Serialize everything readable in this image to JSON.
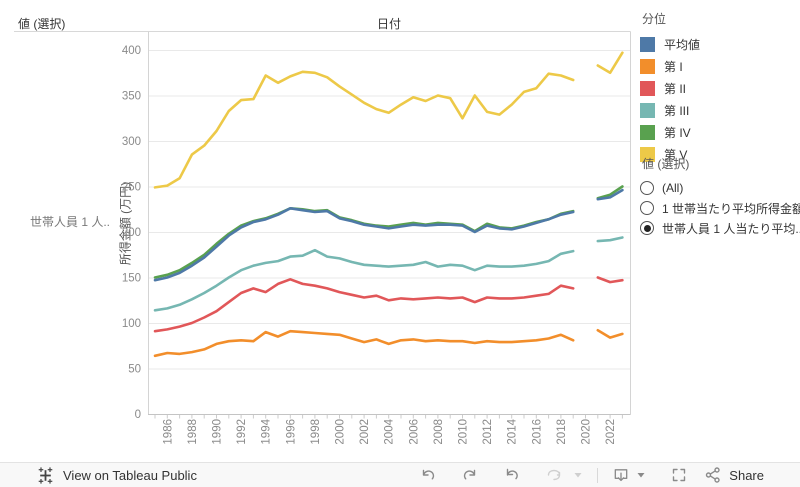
{
  "sheet": {
    "corner_header": "値 (選択)",
    "col_header": "日付",
    "row_label": "世帯人員 1 人.."
  },
  "legend": {
    "title": "分位",
    "items": [
      {
        "label": "平均値",
        "color": "#4e79a7"
      },
      {
        "label": "第 I",
        "color": "#f28e2b"
      },
      {
        "label": "第 II",
        "color": "#e15759"
      },
      {
        "label": "第 III",
        "color": "#76b7b2"
      },
      {
        "label": "第 IV",
        "color": "#59a14f"
      },
      {
        "label": "第 V",
        "color": "#edc948"
      }
    ]
  },
  "filter": {
    "title": "値 (選択)",
    "options": [
      {
        "label": "(All)",
        "selected": false
      },
      {
        "label": "1 世帯当たり平均所得金額",
        "selected": false
      },
      {
        "label": "世帯人員 1 人当たり平均...",
        "selected": true
      }
    ]
  },
  "toolbar": {
    "view_label": "View on Tableau Public",
    "share_label": "Share"
  },
  "chart_data": {
    "type": "line",
    "title": "日付",
    "xlabel": "日付",
    "ylabel": "所得金額 (万円)",
    "ylim": [
      0,
      400
    ],
    "y_ticks": [
      0,
      50,
      100,
      150,
      200,
      250,
      300,
      350,
      400
    ],
    "x_tick_years": [
      1986,
      1988,
      1990,
      1992,
      1994,
      1996,
      1998,
      2000,
      2002,
      2004,
      2006,
      2008,
      2010,
      2012,
      2014,
      2016,
      2018,
      2020,
      2022
    ],
    "grid": true,
    "legend_position": "right",
    "x": [
      1985,
      1986,
      1987,
      1988,
      1989,
      1990,
      1991,
      1992,
      1993,
      1994,
      1995,
      1996,
      1997,
      1998,
      1999,
      2000,
      2001,
      2002,
      2003,
      2004,
      2005,
      2006,
      2007,
      2008,
      2009,
      2010,
      2011,
      2012,
      2013,
      2014,
      2015,
      2016,
      2017,
      2018,
      2019,
      2021,
      2022,
      2023
    ],
    "series": [
      {
        "name": "第 V",
        "color": "#edc948",
        "values": [
          249,
          251,
          259,
          285,
          295,
          311,
          333,
          345,
          346,
          372,
          364,
          371,
          376,
          375,
          370,
          360,
          351,
          342,
          335,
          331,
          340,
          348,
          344,
          350,
          347,
          325,
          350,
          332,
          329,
          340,
          354,
          358,
          374,
          372,
          367,
          383,
          375,
          397
        ]
      },
      {
        "name": "第 I",
        "color": "#f28e2b",
        "values": [
          64,
          67,
          66,
          68,
          71,
          77,
          80,
          81,
          80,
          90,
          85,
          91,
          90,
          89,
          88,
          87,
          83,
          79,
          82,
          77,
          81,
          82,
          80,
          81,
          80,
          80,
          78,
          80,
          79,
          79,
          80,
          81,
          83,
          87,
          81,
          92,
          84,
          88
        ]
      },
      {
        "name": "第 II",
        "color": "#e15759",
        "values": [
          91,
          93,
          96,
          100,
          106,
          113,
          123,
          133,
          138,
          134,
          143,
          148,
          143,
          141,
          138,
          134,
          131,
          128,
          130,
          125,
          127,
          126,
          127,
          128,
          127,
          128,
          123,
          128,
          127,
          127,
          128,
          130,
          132,
          141,
          138,
          150,
          145,
          147
        ]
      },
      {
        "name": "第 III",
        "color": "#76b7b2",
        "values": [
          114,
          116,
          120,
          126,
          133,
          141,
          150,
          158,
          163,
          166,
          168,
          173,
          174,
          180,
          173,
          171,
          167,
          164,
          163,
          162,
          163,
          164,
          167,
          162,
          164,
          163,
          158,
          163,
          162,
          162,
          163,
          165,
          168,
          176,
          179,
          190,
          191,
          194
        ]
      },
      {
        "name": "第 IV",
        "color": "#59a14f",
        "values": [
          150,
          153,
          158,
          166,
          175,
          187,
          198,
          207,
          212,
          215,
          220,
          226,
          225,
          223,
          224,
          216,
          213,
          209,
          207,
          206,
          208,
          210,
          208,
          210,
          209,
          208,
          201,
          209,
          205,
          204,
          207,
          211,
          214,
          220,
          223,
          237,
          241,
          250
        ]
      },
      {
        "name": "平均値",
        "color": "#4e79a7",
        "values": [
          147,
          150,
          155,
          163,
          172,
          184,
          196,
          205,
          211,
          214,
          219,
          226,
          224,
          222,
          223,
          215,
          212,
          208,
          206,
          204,
          206,
          208,
          207,
          208,
          208,
          207,
          200,
          207,
          204,
          203,
          206,
          210,
          214,
          219,
          222,
          236,
          238,
          246
        ]
      }
    ]
  }
}
